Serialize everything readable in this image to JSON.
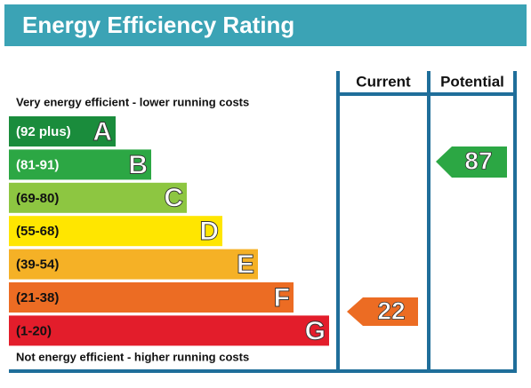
{
  "header": {
    "title": "Energy Efficiency Rating"
  },
  "columns": {
    "current": "Current",
    "potential": "Potential"
  },
  "top_note": "Very energy efficient - lower running costs",
  "bottom_note": "Not energy efficient - higher running costs",
  "bands": [
    {
      "range": "(92 plus)",
      "letter": "A"
    },
    {
      "range": "(81-91)",
      "letter": "B"
    },
    {
      "range": "(69-80)",
      "letter": "C"
    },
    {
      "range": "(55-68)",
      "letter": "D"
    },
    {
      "range": "(39-54)",
      "letter": "E"
    },
    {
      "range": "(21-38)",
      "letter": "F"
    },
    {
      "range": "(1-20)",
      "letter": "G"
    }
  ],
  "current": {
    "value": 22
  },
  "potential": {
    "value": 87
  }
}
